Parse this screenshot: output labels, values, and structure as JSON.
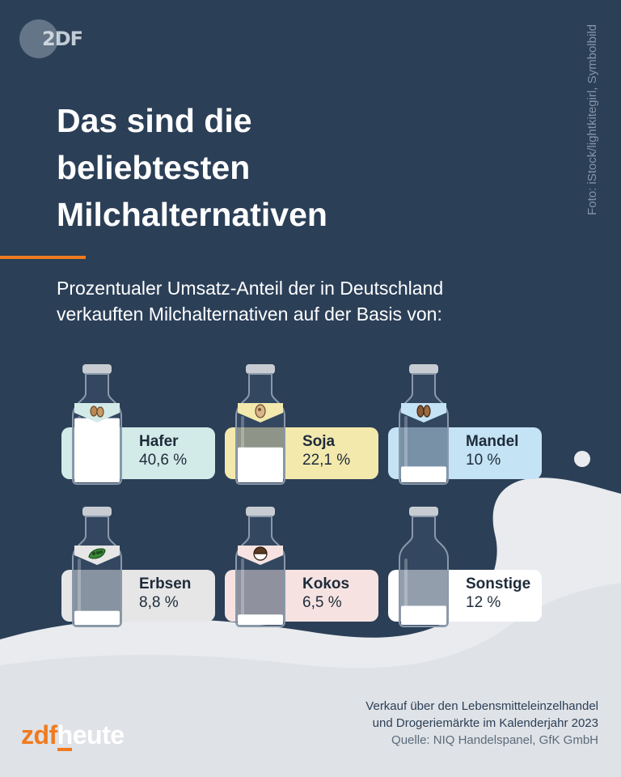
{
  "logo": {
    "text": "2DF"
  },
  "photo_credit": "Foto: iStock/lightkitegirl, Symbolbild",
  "title_lines": [
    "Das sind die",
    "beliebtesten",
    "Milchalternativen"
  ],
  "subtitle_lines": [
    "Prozentualer Umsatz-Anteil der in Deutschland",
    "verkauften Milchalternativen auf der Basis von:"
  ],
  "colors": {
    "background": "#2b3f57",
    "accent": "#f07a1f",
    "hafer": "#d3ebe8",
    "soja": "#f3e9ad",
    "mandel": "#c4e3f4",
    "erbsen": "#e6e6e6",
    "kokos": "#f6e3e1",
    "sonstige": "#ffffff"
  },
  "chart_data": {
    "type": "bar",
    "categories": [
      "Hafer",
      "Soja",
      "Mandel",
      "Erbsen",
      "Kokos",
      "Sonstige"
    ],
    "values": [
      40.6,
      22.1,
      10,
      8.8,
      6.5,
      12
    ],
    "value_labels": [
      "40,6 %",
      "22,1 %",
      "10 %",
      "8,8 %",
      "6,5 %",
      "12 %"
    ],
    "icons": [
      "oat-icon",
      "soybean-icon",
      "almond-icon",
      "pea-icon",
      "coconut-icon",
      ""
    ],
    "unit": "%"
  },
  "footer": {
    "line1": "Verkauf über den Lebensmitteleinzelhandel",
    "line2": "und Drogeriemärkte im Kalenderjahr 2023",
    "source": "Quelle: NIQ Handelspanel, GfK GmbH"
  },
  "brand": {
    "part1": "zdf",
    "part2": "heute"
  }
}
